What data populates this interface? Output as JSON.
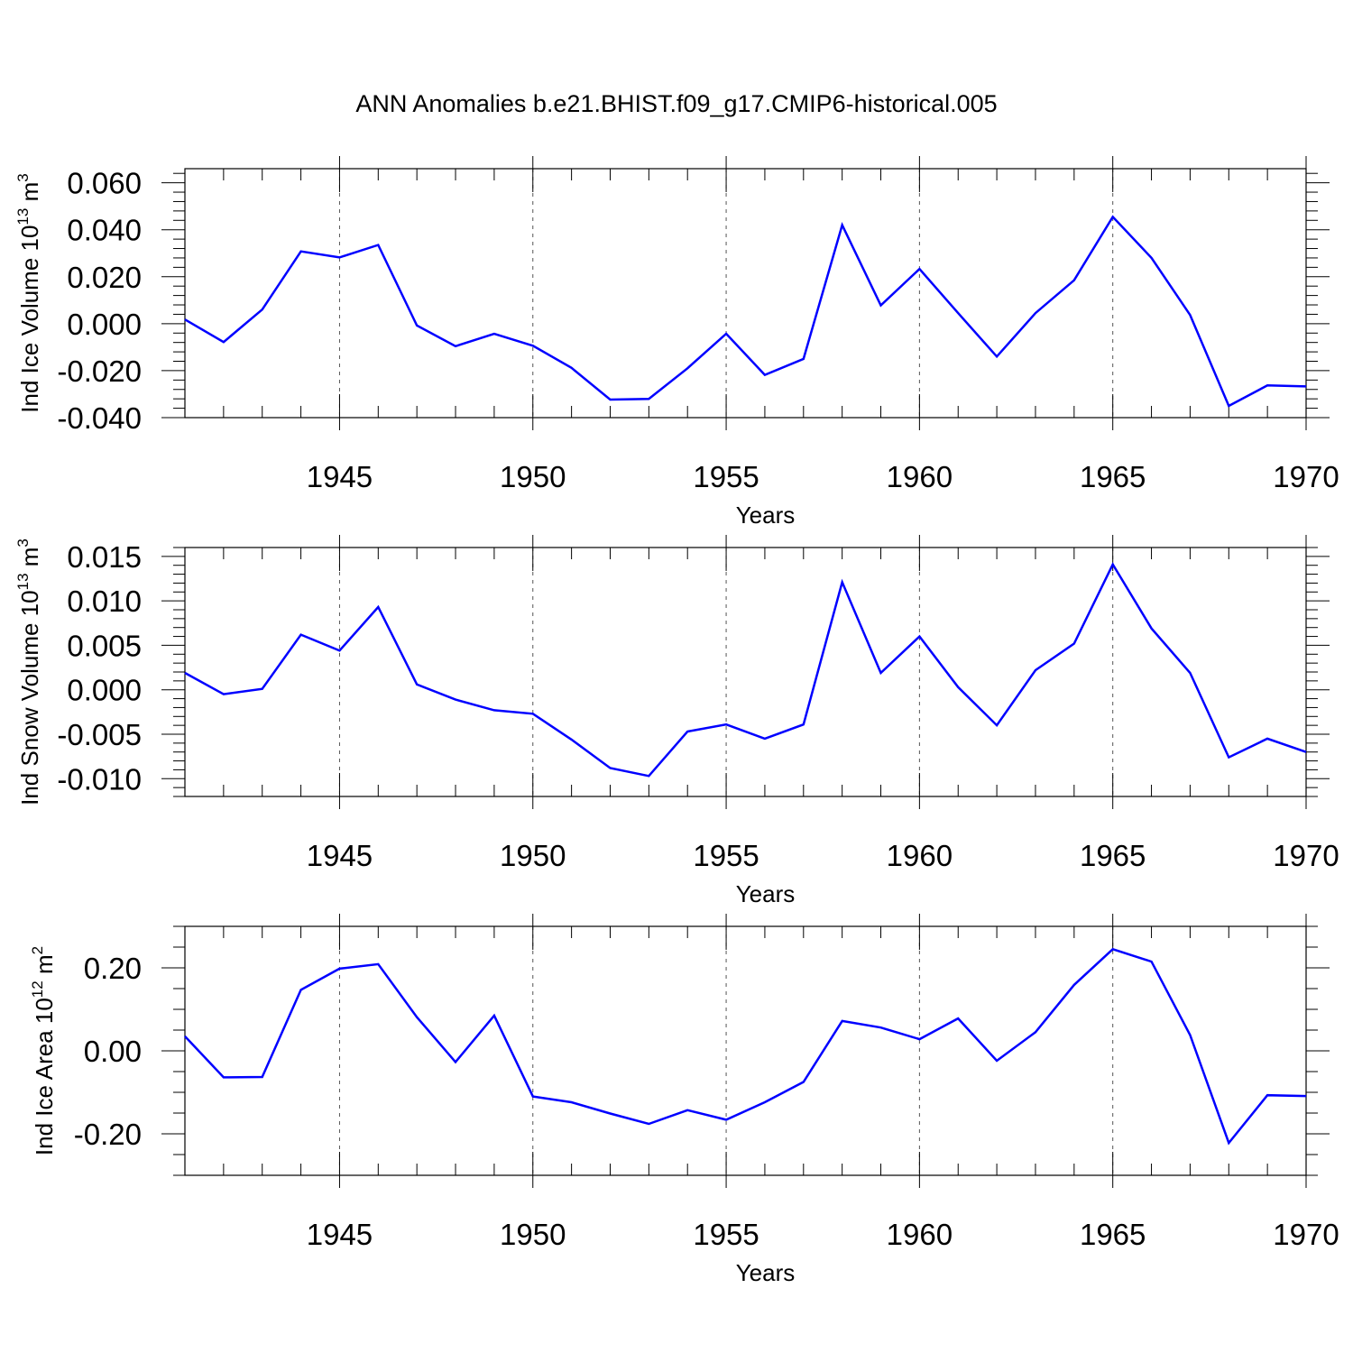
{
  "figure_title": "ANN Anomalies b.e21.BHIST.f09_g17.CMIP6-historical.005",
  "chart_data": [
    {
      "type": "line",
      "title": "",
      "xlabel": "Years",
      "ylabel": "Ind Ice Volume 10",
      "ylabel_exp": "13",
      "ylabel_unit": " m",
      "ylabel_unit_exp": "3",
      "xlim": [
        1941,
        1970
      ],
      "ylim": [
        -0.04,
        0.066
      ],
      "x_ticks": [
        1945,
        1950,
        1955,
        1960,
        1965,
        1970
      ],
      "x_tick_labels": [
        "1945",
        "1950",
        "1955",
        "1960",
        "1965",
        "1970"
      ],
      "y_ticks": [
        -0.04,
        -0.02,
        0.0,
        0.02,
        0.04,
        0.06
      ],
      "y_tick_labels": [
        "-0.040",
        "-0.020",
        "0.000",
        "0.020",
        "0.040",
        "0.060"
      ],
      "y_minor_step": 0.004,
      "grid": "x-dashed",
      "color": "#0000ff",
      "x": [
        1941,
        1942,
        1943,
        1944,
        1945,
        1946,
        1947,
        1948,
        1949,
        1950,
        1951,
        1952,
        1953,
        1954,
        1955,
        1956,
        1957,
        1958,
        1959,
        1960,
        1961,
        1962,
        1963,
        1964,
        1965,
        1966,
        1967,
        1968,
        1969,
        1970
      ],
      "values": [
        0.0018,
        -0.0078,
        0.006,
        0.0308,
        0.0282,
        0.0335,
        -0.0008,
        -0.0096,
        -0.0043,
        -0.0094,
        -0.0188,
        -0.0323,
        -0.032,
        -0.019,
        -0.0043,
        -0.0218,
        -0.015,
        0.042,
        0.0078,
        0.0233,
        0.0045,
        -0.014,
        0.0045,
        0.0185,
        0.0455,
        0.028,
        0.0037,
        -0.035,
        -0.0263,
        -0.0267
      ]
    },
    {
      "type": "line",
      "title": "",
      "xlabel": "Years",
      "ylabel": "Ind Snow Volume 10",
      "ylabel_exp": "13",
      "ylabel_unit": " m",
      "ylabel_unit_exp": "3",
      "xlim": [
        1941,
        1970
      ],
      "ylim": [
        -0.012,
        0.016
      ],
      "x_ticks": [
        1945,
        1950,
        1955,
        1960,
        1965,
        1970
      ],
      "x_tick_labels": [
        "1945",
        "1950",
        "1955",
        "1960",
        "1965",
        "1970"
      ],
      "y_ticks": [
        -0.01,
        -0.005,
        0.0,
        0.005,
        0.01,
        0.015
      ],
      "y_tick_labels": [
        "-0.010",
        "-0.005",
        "0.000",
        "0.005",
        "0.010",
        "0.015"
      ],
      "y_minor_step": 0.001,
      "grid": "x-dashed",
      "color": "#0000ff",
      "x": [
        1941,
        1942,
        1943,
        1944,
        1945,
        1946,
        1947,
        1948,
        1949,
        1950,
        1951,
        1952,
        1953,
        1954,
        1955,
        1956,
        1957,
        1958,
        1959,
        1960,
        1961,
        1962,
        1963,
        1964,
        1965,
        1966,
        1967,
        1968,
        1969,
        1970
      ],
      "values": [
        0.0019,
        -0.0005,
        0.0001,
        0.0062,
        0.0044,
        0.0093,
        0.0006,
        -0.0011,
        -0.0023,
        -0.0027,
        -0.0056,
        -0.0088,
        -0.0097,
        -0.0047,
        -0.0039,
        -0.0055,
        -0.0039,
        0.0121,
        0.0019,
        0.006,
        0.0003,
        -0.004,
        0.0022,
        0.0052,
        0.0141,
        0.0069,
        0.0019,
        -0.0076,
        -0.0055,
        -0.007
      ]
    },
    {
      "type": "line",
      "title": "",
      "xlabel": "Years",
      "ylabel": "Ind Ice Area 10",
      "ylabel_exp": "12",
      "ylabel_unit": " m",
      "ylabel_unit_exp": "2",
      "xlim": [
        1941,
        1970
      ],
      "ylim": [
        -0.3,
        0.3
      ],
      "x_ticks": [
        1945,
        1950,
        1955,
        1960,
        1965,
        1970
      ],
      "x_tick_labels": [
        "1945",
        "1950",
        "1955",
        "1960",
        "1965",
        "1970"
      ],
      "y_ticks": [
        -0.2,
        0.0,
        0.2
      ],
      "y_tick_labels": [
        "-0.20",
        "0.00",
        "0.20"
      ],
      "y_minor_step": 0.05,
      "grid": "x-dashed",
      "color": "#0000ff",
      "x": [
        1941,
        1942,
        1943,
        1944,
        1945,
        1946,
        1947,
        1948,
        1949,
        1950,
        1951,
        1952,
        1953,
        1954,
        1955,
        1956,
        1957,
        1958,
        1959,
        1960,
        1961,
        1962,
        1963,
        1964,
        1965,
        1966,
        1967,
        1968,
        1969,
        1970
      ],
      "values": [
        0.035,
        -0.064,
        -0.063,
        0.147,
        0.198,
        0.209,
        0.081,
        -0.027,
        0.085,
        -0.11,
        -0.124,
        -0.151,
        -0.176,
        -0.143,
        -0.166,
        -0.124,
        -0.075,
        0.072,
        0.056,
        0.028,
        0.078,
        -0.024,
        0.045,
        0.159,
        0.245,
        0.215,
        0.038,
        -0.222,
        -0.107,
        -0.109
      ]
    }
  ]
}
